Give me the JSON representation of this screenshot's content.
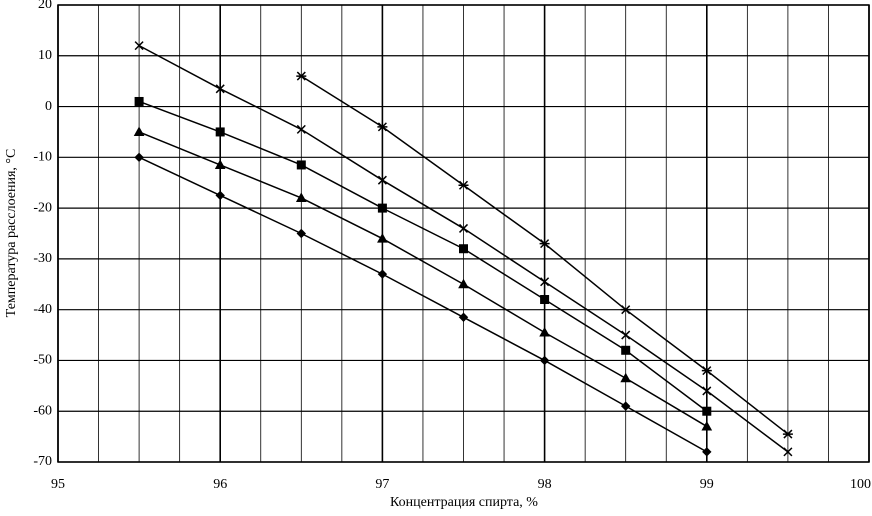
{
  "chart_data": {
    "type": "line",
    "xlabel": "Концентрация спирта, %",
    "ylabel": "Температура расслоения, °С",
    "x": [
      95.5,
      96,
      96.5,
      97,
      97.5,
      98,
      98.5,
      99,
      99.5
    ],
    "series": [
      {
        "color": "#000000",
        "marker": "x",
        "values": [
          12,
          3.5,
          -4.5,
          -14.5,
          -24,
          -34.5,
          -45,
          -56,
          -68
        ]
      },
      {
        "color": "#000000",
        "marker": "asterisk",
        "values": [
          null,
          null,
          6,
          -4,
          -15.5,
          -27,
          -40,
          -52,
          -64.5
        ]
      },
      {
        "color": "#000000",
        "marker": "square",
        "values": [
          1,
          -5,
          -11.5,
          -20,
          -28,
          -38,
          -48,
          -60,
          null
        ]
      },
      {
        "color": "#000000",
        "marker": "triangle",
        "values": [
          -5,
          -11.5,
          -18,
          -26,
          -35,
          -44.5,
          -53.5,
          -63,
          null
        ]
      },
      {
        "color": "#000000",
        "marker": "diamond",
        "values": [
          -10,
          -17.5,
          -25,
          -33,
          -41.5,
          -50,
          -59,
          -68,
          null
        ]
      }
    ],
    "xlim": [
      95,
      100
    ],
    "xticks": [
      95,
      96,
      97,
      98,
      99,
      100
    ],
    "xminorticks": [
      95.25,
      95.5,
      95.75,
      96.25,
      96.5,
      96.75,
      97.25,
      97.5,
      97.75,
      98.25,
      98.5,
      98.75,
      99.25,
      99.5,
      99.75
    ],
    "ylim": [
      -70,
      20
    ],
    "yticks": [
      20,
      10,
      0,
      -10,
      -20,
      -30,
      -40,
      -50,
      -60,
      -70
    ],
    "grid": true
  }
}
